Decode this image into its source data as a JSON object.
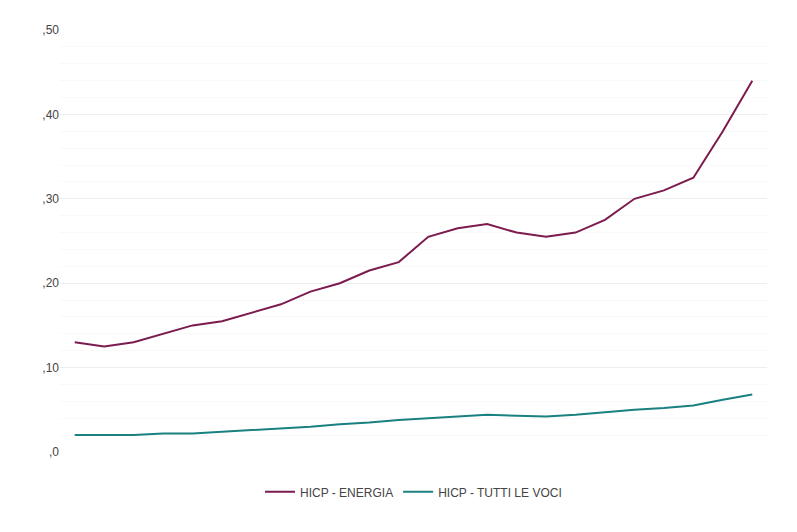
{
  "chart_data": {
    "type": "line",
    "categories": [
      null,
      null,
      null,
      null,
      null,
      null,
      null,
      null,
      null,
      null,
      null,
      null,
      null,
      null,
      null,
      null,
      null,
      null,
      null,
      null,
      null,
      null,
      null,
      null
    ],
    "series": [
      {
        "name": "HICP - ENERGIA",
        "color": "#7B1B4E",
        "values": [
          0.13,
          0.125,
          0.13,
          0.14,
          0.15,
          0.155,
          0.165,
          0.175,
          0.19,
          0.2,
          0.215,
          0.225,
          0.255,
          0.265,
          0.27,
          0.26,
          0.255,
          0.26,
          0.275,
          0.3,
          0.31,
          0.325,
          0.38,
          0.44
        ]
      },
      {
        "name": "HICP - TUTTI LE VOCI",
        "color": "#1A8080",
        "values": [
          0.02,
          0.02,
          0.02,
          0.022,
          0.022,
          0.024,
          0.026,
          0.028,
          0.03,
          0.033,
          0.035,
          0.038,
          0.04,
          0.042,
          0.044,
          0.043,
          0.042,
          0.044,
          0.047,
          0.05,
          0.052,
          0.055,
          0.062,
          0.068
        ]
      }
    ],
    "ylim": [
      0.0,
      0.5
    ],
    "yticks": [
      {
        "value": 0.0,
        "label": ",0"
      },
      {
        "value": 0.1,
        "label": ",10"
      },
      {
        "value": 0.2,
        "label": ",20"
      },
      {
        "value": 0.3,
        "label": ",30"
      },
      {
        "value": 0.4,
        "label": ",40"
      },
      {
        "value": 0.5,
        "label": ",50"
      }
    ],
    "grid": true,
    "legend": "bottom",
    "tick_labels": "y"
  }
}
